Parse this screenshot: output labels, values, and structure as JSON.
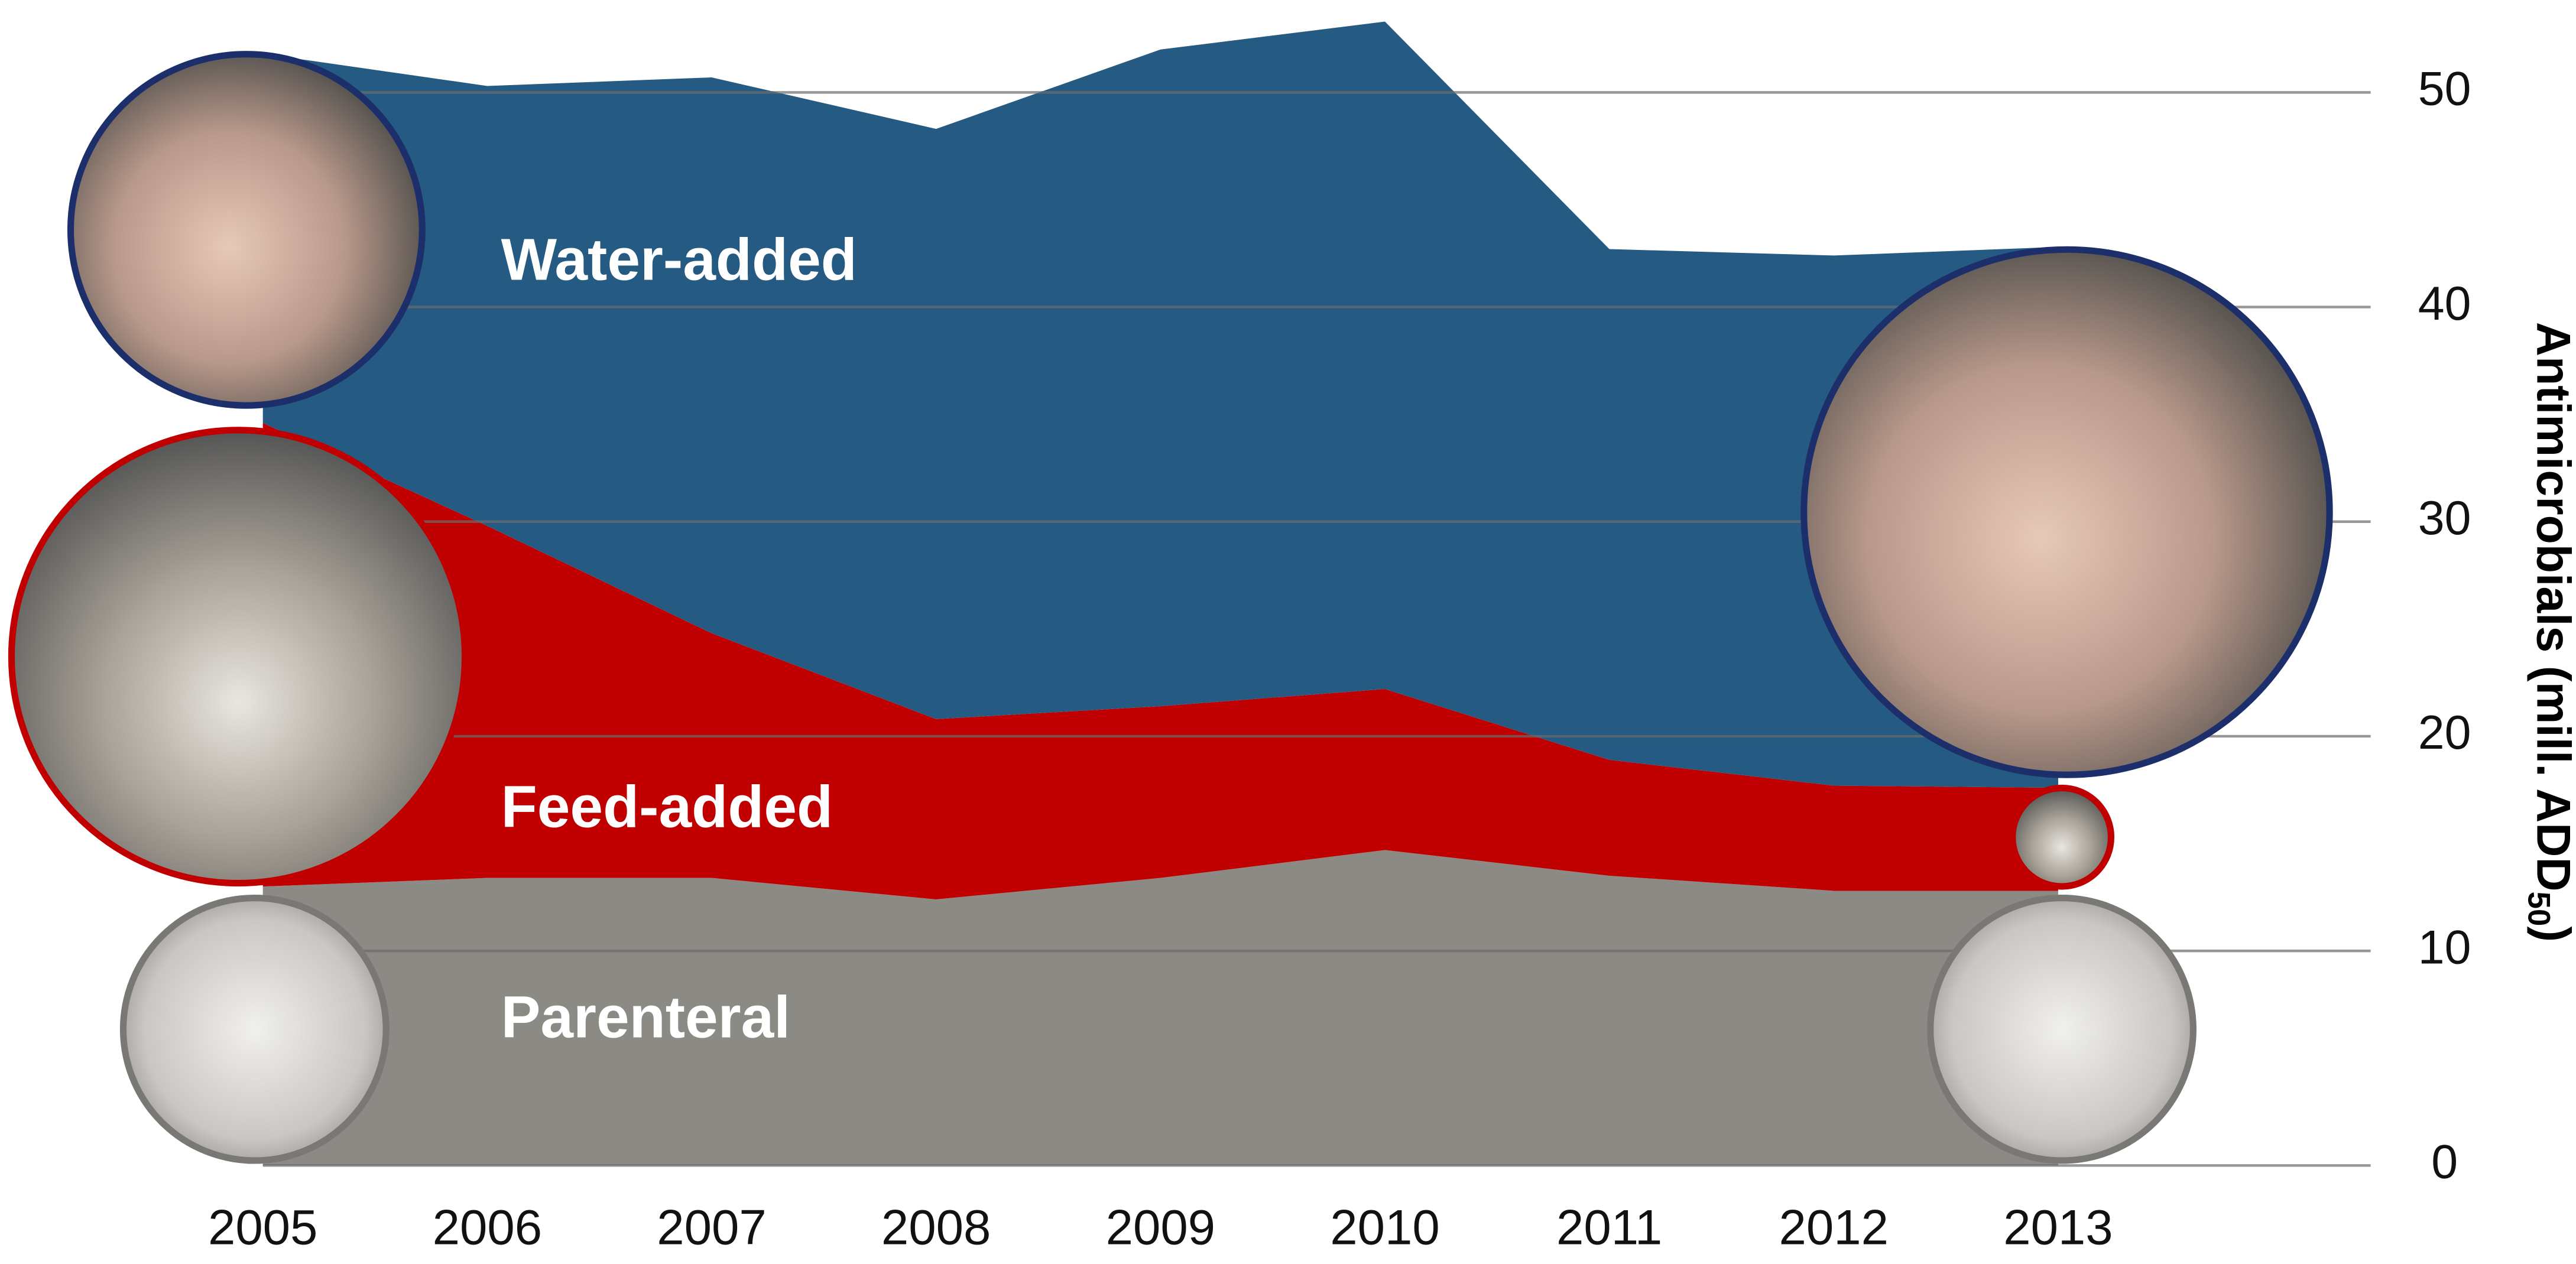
{
  "chart_data": {
    "type": "stacked-area",
    "categories": [
      "2005",
      "2006",
      "2007",
      "2008",
      "2009",
      "2010",
      "2011",
      "2012",
      "2013"
    ],
    "series": [
      {
        "name": "Parenteral",
        "color": "#8c8a85",
        "values": [
          13.0,
          13.4,
          13.4,
          12.4,
          13.4,
          14.7,
          13.5,
          12.8,
          12.8
        ]
      },
      {
        "name": "Feed-added",
        "color": "#c00000",
        "values": [
          21.6,
          16.4,
          11.4,
          8.4,
          8.0,
          7.5,
          5.4,
          4.9,
          4.8
        ]
      },
      {
        "name": "Water-added",
        "color": "#255a82",
        "values": [
          17.2,
          20.5,
          25.9,
          27.5,
          30.6,
          31.1,
          23.8,
          24.7,
          25.2
        ]
      }
    ],
    "y_label": [
      "Antimicrobials (mill. ADD",
      "50",
      ")"
    ],
    "ylim": [
      0,
      54
    ],
    "yticks": [
      0,
      10,
      20,
      30,
      40,
      50
    ],
    "grid": true,
    "y_axis_side": "right"
  }
}
